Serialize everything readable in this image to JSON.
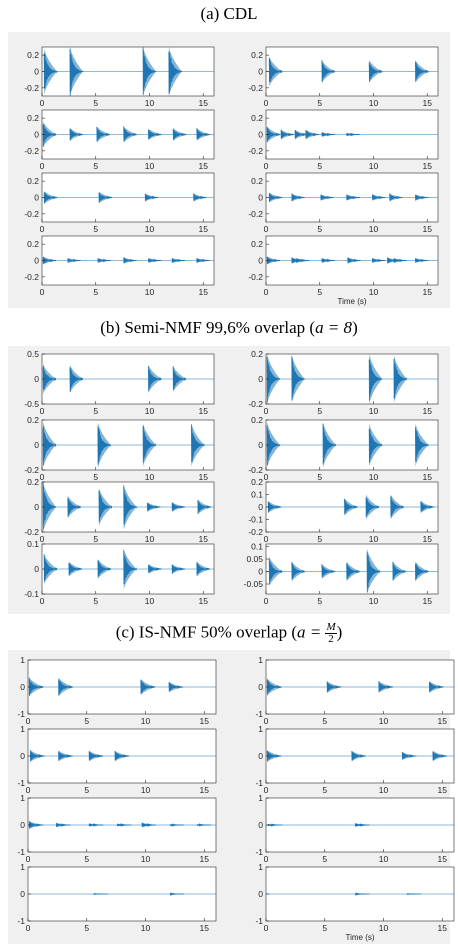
{
  "titles": {
    "a": "(a) CDL",
    "b_prefix": "(b) Semi-NMF 99,6% overlap (",
    "b_param": "a = 8",
    "b_suffix": ")",
    "c_prefix": "(c) IS-NMF 50% overlap (",
    "c_param": "a =",
    "c_num": "M",
    "c_den": "2",
    "c_suffix": ")"
  },
  "colors": {
    "signal": "#1f77b4",
    "panel_bg": "#f0f0f0",
    "axes_bg": "#ffffff"
  },
  "chart_data": [
    {
      "group": "(a) CDL",
      "type": "line",
      "xlabel": "Time (s)",
      "xlim": [
        0,
        16
      ],
      "xticks": [
        0,
        5,
        10,
        15
      ],
      "subplots": [
        {
          "col": 0,
          "ylim": [
            -0.3,
            0.3
          ],
          "yticks": [
            "0.2",
            "0",
            "-0.2"
          ],
          "yvals": [
            0.2,
            0,
            -0.2
          ],
          "events": [
            [
              0.2,
              0.28
            ],
            [
              2.6,
              0.32
            ],
            [
              9.4,
              0.32
            ],
            [
              11.8,
              0.32
            ]
          ]
        },
        {
          "col": 1,
          "ylim": [
            -0.3,
            0.3
          ],
          "yticks": [
            "0.2",
            "0",
            "-0.2"
          ],
          "yvals": [
            0.2,
            0,
            -0.2
          ],
          "events": [
            [
              0.3,
              0.18
            ],
            [
              5.2,
              0.14
            ],
            [
              9.6,
              0.14
            ],
            [
              13.9,
              0.14
            ]
          ]
        },
        {
          "col": 0,
          "ylim": [
            -0.3,
            0.3
          ],
          "yticks": [
            "0.2",
            "0",
            "-0.2"
          ],
          "yvals": [
            0.2,
            0,
            -0.2
          ],
          "events": [
            [
              0.1,
              0.16
            ],
            [
              2.6,
              0.08
            ],
            [
              5.1,
              0.1
            ],
            [
              7.6,
              0.1
            ],
            [
              9.9,
              0.07
            ],
            [
              12.2,
              0.08
            ],
            [
              14.4,
              0.08
            ]
          ]
        },
        {
          "col": 1,
          "ylim": [
            -0.3,
            0.3
          ],
          "yticks": [
            "0.2",
            "0",
            "-0.2"
          ],
          "yvals": [
            0.2,
            0,
            -0.2
          ],
          "events": [
            [
              0.1,
              0.1
            ],
            [
              1.4,
              0.06
            ],
            [
              2.7,
              0.06
            ],
            [
              3.7,
              0.06
            ],
            [
              5.2,
              0.03
            ],
            [
              7.5,
              0.02
            ]
          ]
        },
        {
          "col": 0,
          "ylim": [
            -0.3,
            0.3
          ],
          "yticks": [
            "0.2",
            "0",
            "-0.2"
          ],
          "yvals": [
            0.2,
            0,
            -0.2
          ],
          "events": [
            [
              0.2,
              0.08
            ],
            [
              5.3,
              0.07
            ],
            [
              9.6,
              0.05
            ],
            [
              14.1,
              0.05
            ]
          ]
        },
        {
          "col": 1,
          "ylim": [
            -0.3,
            0.3
          ],
          "yticks": [
            "0.2",
            "0",
            "-0.2"
          ],
          "yvals": [
            0.2,
            0,
            -0.2
          ],
          "events": [
            [
              0.3,
              0.06
            ],
            [
              2.4,
              0.05
            ],
            [
              5.1,
              0.04
            ],
            [
              7.5,
              0.04
            ],
            [
              9.9,
              0.04
            ],
            [
              11.5,
              0.05
            ],
            [
              13.9,
              0.04
            ]
          ]
        },
        {
          "col": 0,
          "ylim": [
            -0.3,
            0.3
          ],
          "yticks": [
            "0.2",
            "0",
            "-0.2"
          ],
          "yvals": [
            0.2,
            0,
            -0.2
          ],
          "events": [
            [
              0.1,
              0.05
            ],
            [
              2.4,
              0.03
            ],
            [
              5.2,
              0.03
            ],
            [
              7.6,
              0.04
            ],
            [
              9.9,
              0.03
            ],
            [
              12.1,
              0.03
            ],
            [
              14.4,
              0.03
            ]
          ]
        },
        {
          "col": 1,
          "ylim": [
            -0.3,
            0.3
          ],
          "yticks": [
            "0.2",
            "0",
            "-0.2"
          ],
          "yvals": [
            0.2,
            0,
            -0.2
          ],
          "events": [
            [
              0.1,
              0.05
            ],
            [
              2.4,
              0.04
            ],
            [
              2.8,
              0.03
            ],
            [
              5.2,
              0.03
            ],
            [
              7.6,
              0.04
            ],
            [
              9.9,
              0.03
            ],
            [
              11.3,
              0.04
            ],
            [
              11.9,
              0.03
            ],
            [
              13.9,
              0.03
            ]
          ]
        }
      ]
    },
    {
      "group": "(b) Semi-NMF 99,6% overlap",
      "type": "line",
      "xlim": [
        0,
        16
      ],
      "xticks": [
        0,
        5,
        10,
        15
      ],
      "subplots": [
        {
          "col": 0,
          "ylim": [
            -0.5,
            0.5
          ],
          "yticks": [
            "0.5",
            "0",
            "-0.5"
          ],
          "yvals": [
            0.5,
            0,
            -0.5
          ],
          "events": [
            [
              0.1,
              0.3
            ],
            [
              2.6,
              0.28
            ],
            [
              9.9,
              0.28
            ],
            [
              12.2,
              0.26
            ]
          ]
        },
        {
          "col": 1,
          "ylim": [
            -0.2,
            0.2
          ],
          "yticks": [
            "0.2",
            "0",
            "-0.2"
          ],
          "yvals": [
            0.2,
            0,
            -0.2
          ],
          "events": [
            [
              0.1,
              0.2
            ],
            [
              2.4,
              0.19
            ],
            [
              9.6,
              0.2
            ],
            [
              11.9,
              0.19
            ]
          ]
        },
        {
          "col": 0,
          "ylim": [
            -0.2,
            0.2
          ],
          "yticks": [
            "0.2",
            "0",
            "-0.2"
          ],
          "yvals": [
            0.2,
            0,
            -0.2
          ],
          "events": [
            [
              0.1,
              0.18
            ],
            [
              5.2,
              0.18
            ],
            [
              9.4,
              0.17
            ],
            [
              13.9,
              0.17
            ]
          ]
        },
        {
          "col": 1,
          "ylim": [
            -0.2,
            0.2
          ],
          "yticks": [
            "0.2",
            "0",
            "-0.2"
          ],
          "yvals": [
            0.2,
            0,
            -0.2
          ],
          "events": [
            [
              0.1,
              0.18
            ],
            [
              5.3,
              0.18
            ],
            [
              9.6,
              0.17
            ],
            [
              13.9,
              0.17
            ]
          ]
        },
        {
          "col": 0,
          "ylim": [
            -0.2,
            0.2
          ],
          "yticks": [
            "0.2",
            "0",
            "-0.2"
          ],
          "yvals": [
            0.2,
            0,
            -0.2
          ],
          "events": [
            [
              0.1,
              0.2
            ],
            [
              2.4,
              0.09
            ],
            [
              5.3,
              0.15
            ],
            [
              7.6,
              0.18
            ],
            [
              9.8,
              0.04
            ],
            [
              12.1,
              0.04
            ],
            [
              14.5,
              0.06
            ]
          ]
        },
        {
          "col": 1,
          "ylim": [
            -0.2,
            0.2
          ],
          "yticks": [
            "0.2",
            "0.1",
            "0",
            "-0.1",
            "-0.2"
          ],
          "yvals": [
            0.2,
            0.1,
            0,
            -0.1,
            -0.2
          ],
          "events": [
            [
              0.2,
              0.05
            ],
            [
              7.3,
              0.07
            ],
            [
              9.3,
              0.1
            ],
            [
              11.6,
              0.1
            ],
            [
              14.4,
              0.05
            ]
          ]
        },
        {
          "col": 0,
          "ylim": [
            -0.1,
            0.1
          ],
          "yticks": [
            "0.1",
            "0",
            "-0.1"
          ],
          "yvals": [
            0.1,
            0,
            -0.1
          ],
          "events": [
            [
              0.2,
              0.06
            ],
            [
              2.5,
              0.03
            ],
            [
              5.2,
              0.04
            ],
            [
              7.6,
              0.08
            ],
            [
              9.9,
              0.02
            ],
            [
              12.1,
              0.02
            ],
            [
              14.4,
              0.03
            ]
          ]
        },
        {
          "col": 1,
          "ylim": [
            -0.09,
            0.11
          ],
          "yticks": [
            "0.1",
            "0.05",
            "0",
            "-0.05"
          ],
          "yvals": [
            0.1,
            0.05,
            0,
            -0.05
          ],
          "events": [
            [
              0.3,
              0.06
            ],
            [
              2.4,
              0.04
            ],
            [
              5.2,
              0.03
            ],
            [
              7.5,
              0.04
            ],
            [
              9.4,
              0.09
            ],
            [
              11.8,
              0.04
            ],
            [
              13.9,
              0.04
            ]
          ]
        }
      ]
    },
    {
      "group": "(c) IS-NMF 50% overlap",
      "type": "line",
      "xlabel": "Time (s)",
      "xlim": [
        0,
        16
      ],
      "xticks": [
        0,
        5,
        10,
        15
      ],
      "subplots": [
        {
          "col": 0,
          "ylim": [
            -1,
            1
          ],
          "yticks": [
            "1",
            "0",
            "-1"
          ],
          "yvals": [
            1,
            0,
            -1
          ],
          "events": [
            [
              0.1,
              0.35
            ],
            [
              2.6,
              0.35
            ],
            [
              9.6,
              0.3
            ],
            [
              12,
              0.2
            ]
          ]
        },
        {
          "col": 1,
          "ylim": [
            -1,
            1
          ],
          "yticks": [
            "1",
            "0",
            "-1"
          ],
          "yvals": [
            1,
            0,
            -1
          ],
          "events": [
            [
              0.1,
              0.32
            ],
            [
              5.2,
              0.22
            ],
            [
              9.6,
              0.22
            ],
            [
              13.9,
              0.22
            ]
          ]
        },
        {
          "col": 0,
          "ylim": [
            -1,
            1
          ],
          "yticks": [
            "1",
            "0",
            "-1"
          ],
          "yvals": [
            1,
            0,
            -1
          ],
          "events": [
            [
              0.2,
              0.22
            ],
            [
              2.6,
              0.2
            ],
            [
              5.2,
              0.2
            ],
            [
              7.4,
              0.2
            ]
          ]
        },
        {
          "col": 1,
          "ylim": [
            -1,
            1
          ],
          "yticks": [
            "1",
            "0",
            "-1"
          ],
          "yvals": [
            1,
            0,
            -1
          ],
          "events": [
            [
              0.1,
              0.22
            ],
            [
              7.3,
              0.2
            ],
            [
              11.6,
              0.15
            ],
            [
              14.2,
              0.2
            ]
          ]
        },
        {
          "col": 0,
          "ylim": [
            -1,
            1
          ],
          "yticks": [
            "1",
            "0",
            "-1"
          ],
          "yvals": [
            1,
            0,
            -1
          ],
          "events": [
            [
              0.1,
              0.15
            ],
            [
              2.4,
              0.08
            ],
            [
              5.2,
              0.06
            ],
            [
              7.6,
              0.05
            ],
            [
              9.7,
              0.09
            ],
            [
              12.1,
              0.03
            ],
            [
              14.4,
              0.03
            ]
          ]
        },
        {
          "col": 1,
          "ylim": [
            -1,
            1
          ],
          "yticks": [
            "1",
            "0",
            "-1"
          ],
          "yvals": [
            1,
            0,
            -1
          ],
          "events": [
            [
              0.2,
              0.04
            ],
            [
              7.6,
              0.07
            ]
          ]
        },
        {
          "col": 0,
          "ylim": [
            -1,
            1
          ],
          "yticks": [
            "1",
            "0",
            "-1"
          ],
          "yvals": [
            1,
            0,
            -1
          ],
          "events": [
            [
              5.6,
              0.01
            ],
            [
              12.1,
              0.02
            ]
          ]
        },
        {
          "col": 1,
          "ylim": [
            -1,
            1
          ],
          "yticks": [
            "1",
            "0",
            "-1"
          ],
          "yvals": [
            1,
            0,
            -1
          ],
          "events": [
            [
              7.6,
              0.02
            ],
            [
              12.0,
              0.01
            ]
          ]
        }
      ]
    }
  ]
}
